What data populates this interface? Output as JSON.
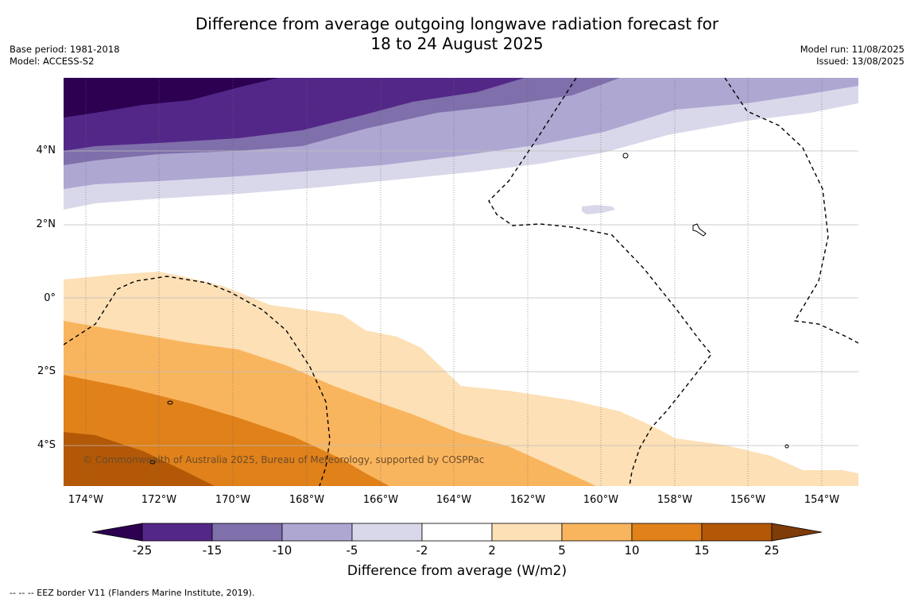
{
  "title_line1": "Difference from average outgoing longwave radiation forecast for",
  "title_line2": "18 to 24 August 2025",
  "meta_left": {
    "base_period": "Base period: 1981-2018",
    "model": "Model: ACCESS-S2"
  },
  "meta_right": {
    "model_run": "Model run: 11/08/2025",
    "issued": "Issued: 13/08/2025"
  },
  "map": {
    "lat_labels": [
      "4°N",
      "2°N",
      "0°",
      "2°S",
      "4°S"
    ],
    "lon_labels": [
      "174°W",
      "172°W",
      "170°W",
      "168°W",
      "166°W",
      "164°W",
      "162°W",
      "160°W",
      "158°W",
      "156°W",
      "154°W"
    ],
    "copyright": "© Commonwealth of Australia 2025, Bureau of Meteorology, supported by COSPPac"
  },
  "colorbar": {
    "ticks": [
      "-25",
      "-15",
      "-10",
      "-5",
      "-2",
      "2",
      "5",
      "10",
      "15",
      "25"
    ],
    "colors": [
      "#2d0051",
      "#532788",
      "#7f6fab",
      "#aea7d2",
      "#d8d8ea",
      "#ffffff",
      "#fde0b6",
      "#f9b55e",
      "#e0811a",
      "#b35806",
      "#7f3b08"
    ],
    "title": "Difference from average (W/m2)"
  },
  "footnote": "--  --  -- EEZ border V11 (Flanders Marine Institute, 2019)."
}
